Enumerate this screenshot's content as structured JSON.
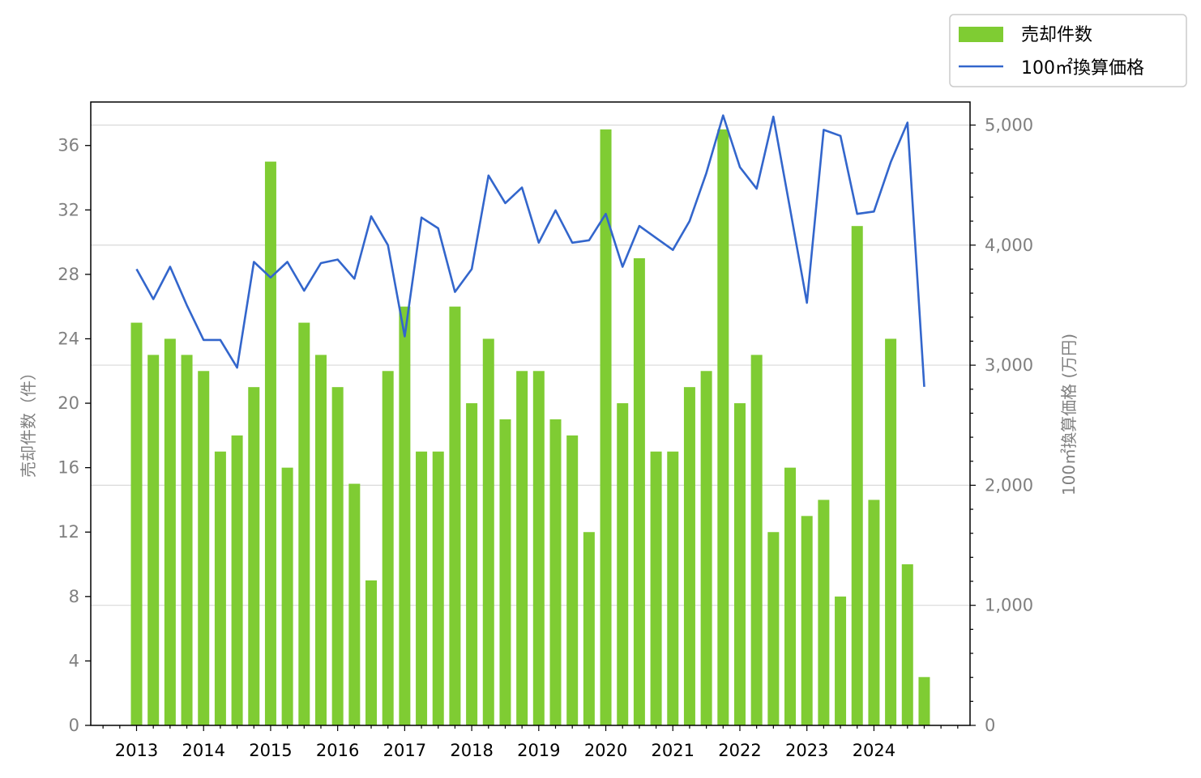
{
  "chart_data": {
    "type": "bar",
    "title": "",
    "xlabel": "",
    "ylabel": "売却件数（件）",
    "y2label": "100㎡換算価格 (万円)",
    "ylim": [
      0,
      38.7
    ],
    "y2lim": [
      0,
      5192
    ],
    "yticks": [
      "0",
      "4",
      "8",
      "12",
      "16",
      "20",
      "24",
      "28",
      "32",
      "36"
    ],
    "y2ticks": [
      "0",
      "1,000",
      "2,000",
      "3,000",
      "4,000",
      "5,000"
    ],
    "year_labels": [
      "2013",
      "2014",
      "2015",
      "2016",
      "2017",
      "2018",
      "2019",
      "2020",
      "2021",
      "2022",
      "2023",
      "2024"
    ],
    "grid": "horizontal, secondary axis",
    "legend_position": "top-right",
    "series": [
      {
        "name": "売却件数",
        "type": "bar",
        "axis": "left",
        "color": "#7fcc33",
        "values": [
          25,
          23,
          24,
          23,
          22,
          17,
          18,
          21,
          35,
          16,
          25,
          23,
          21,
          15,
          9,
          22,
          26,
          17,
          17,
          26,
          20,
          24,
          19,
          22,
          22,
          19,
          18,
          12,
          37,
          20,
          29,
          17,
          17,
          21,
          22,
          37,
          20,
          23,
          12,
          16,
          13,
          14,
          8,
          31,
          14,
          24,
          10,
          3
        ]
      },
      {
        "name": "100㎡換算価格",
        "type": "line",
        "axis": "right",
        "color": "#3366cc",
        "values": [
          3800,
          3550,
          3820,
          3500,
          3210,
          3210,
          2980,
          3860,
          3730,
          3860,
          3620,
          3850,
          3880,
          3720,
          4240,
          4000,
          3240,
          4230,
          4140,
          3610,
          3800,
          4580,
          4350,
          4480,
          4020,
          4290,
          4020,
          4040,
          4260,
          3820,
          4160,
          4060,
          3960,
          4200,
          4600,
          5080,
          4650,
          4470,
          5070,
          4300,
          3520,
          4960,
          4910,
          4260,
          4280,
          4690,
          5020,
          2820
        ]
      }
    ]
  }
}
